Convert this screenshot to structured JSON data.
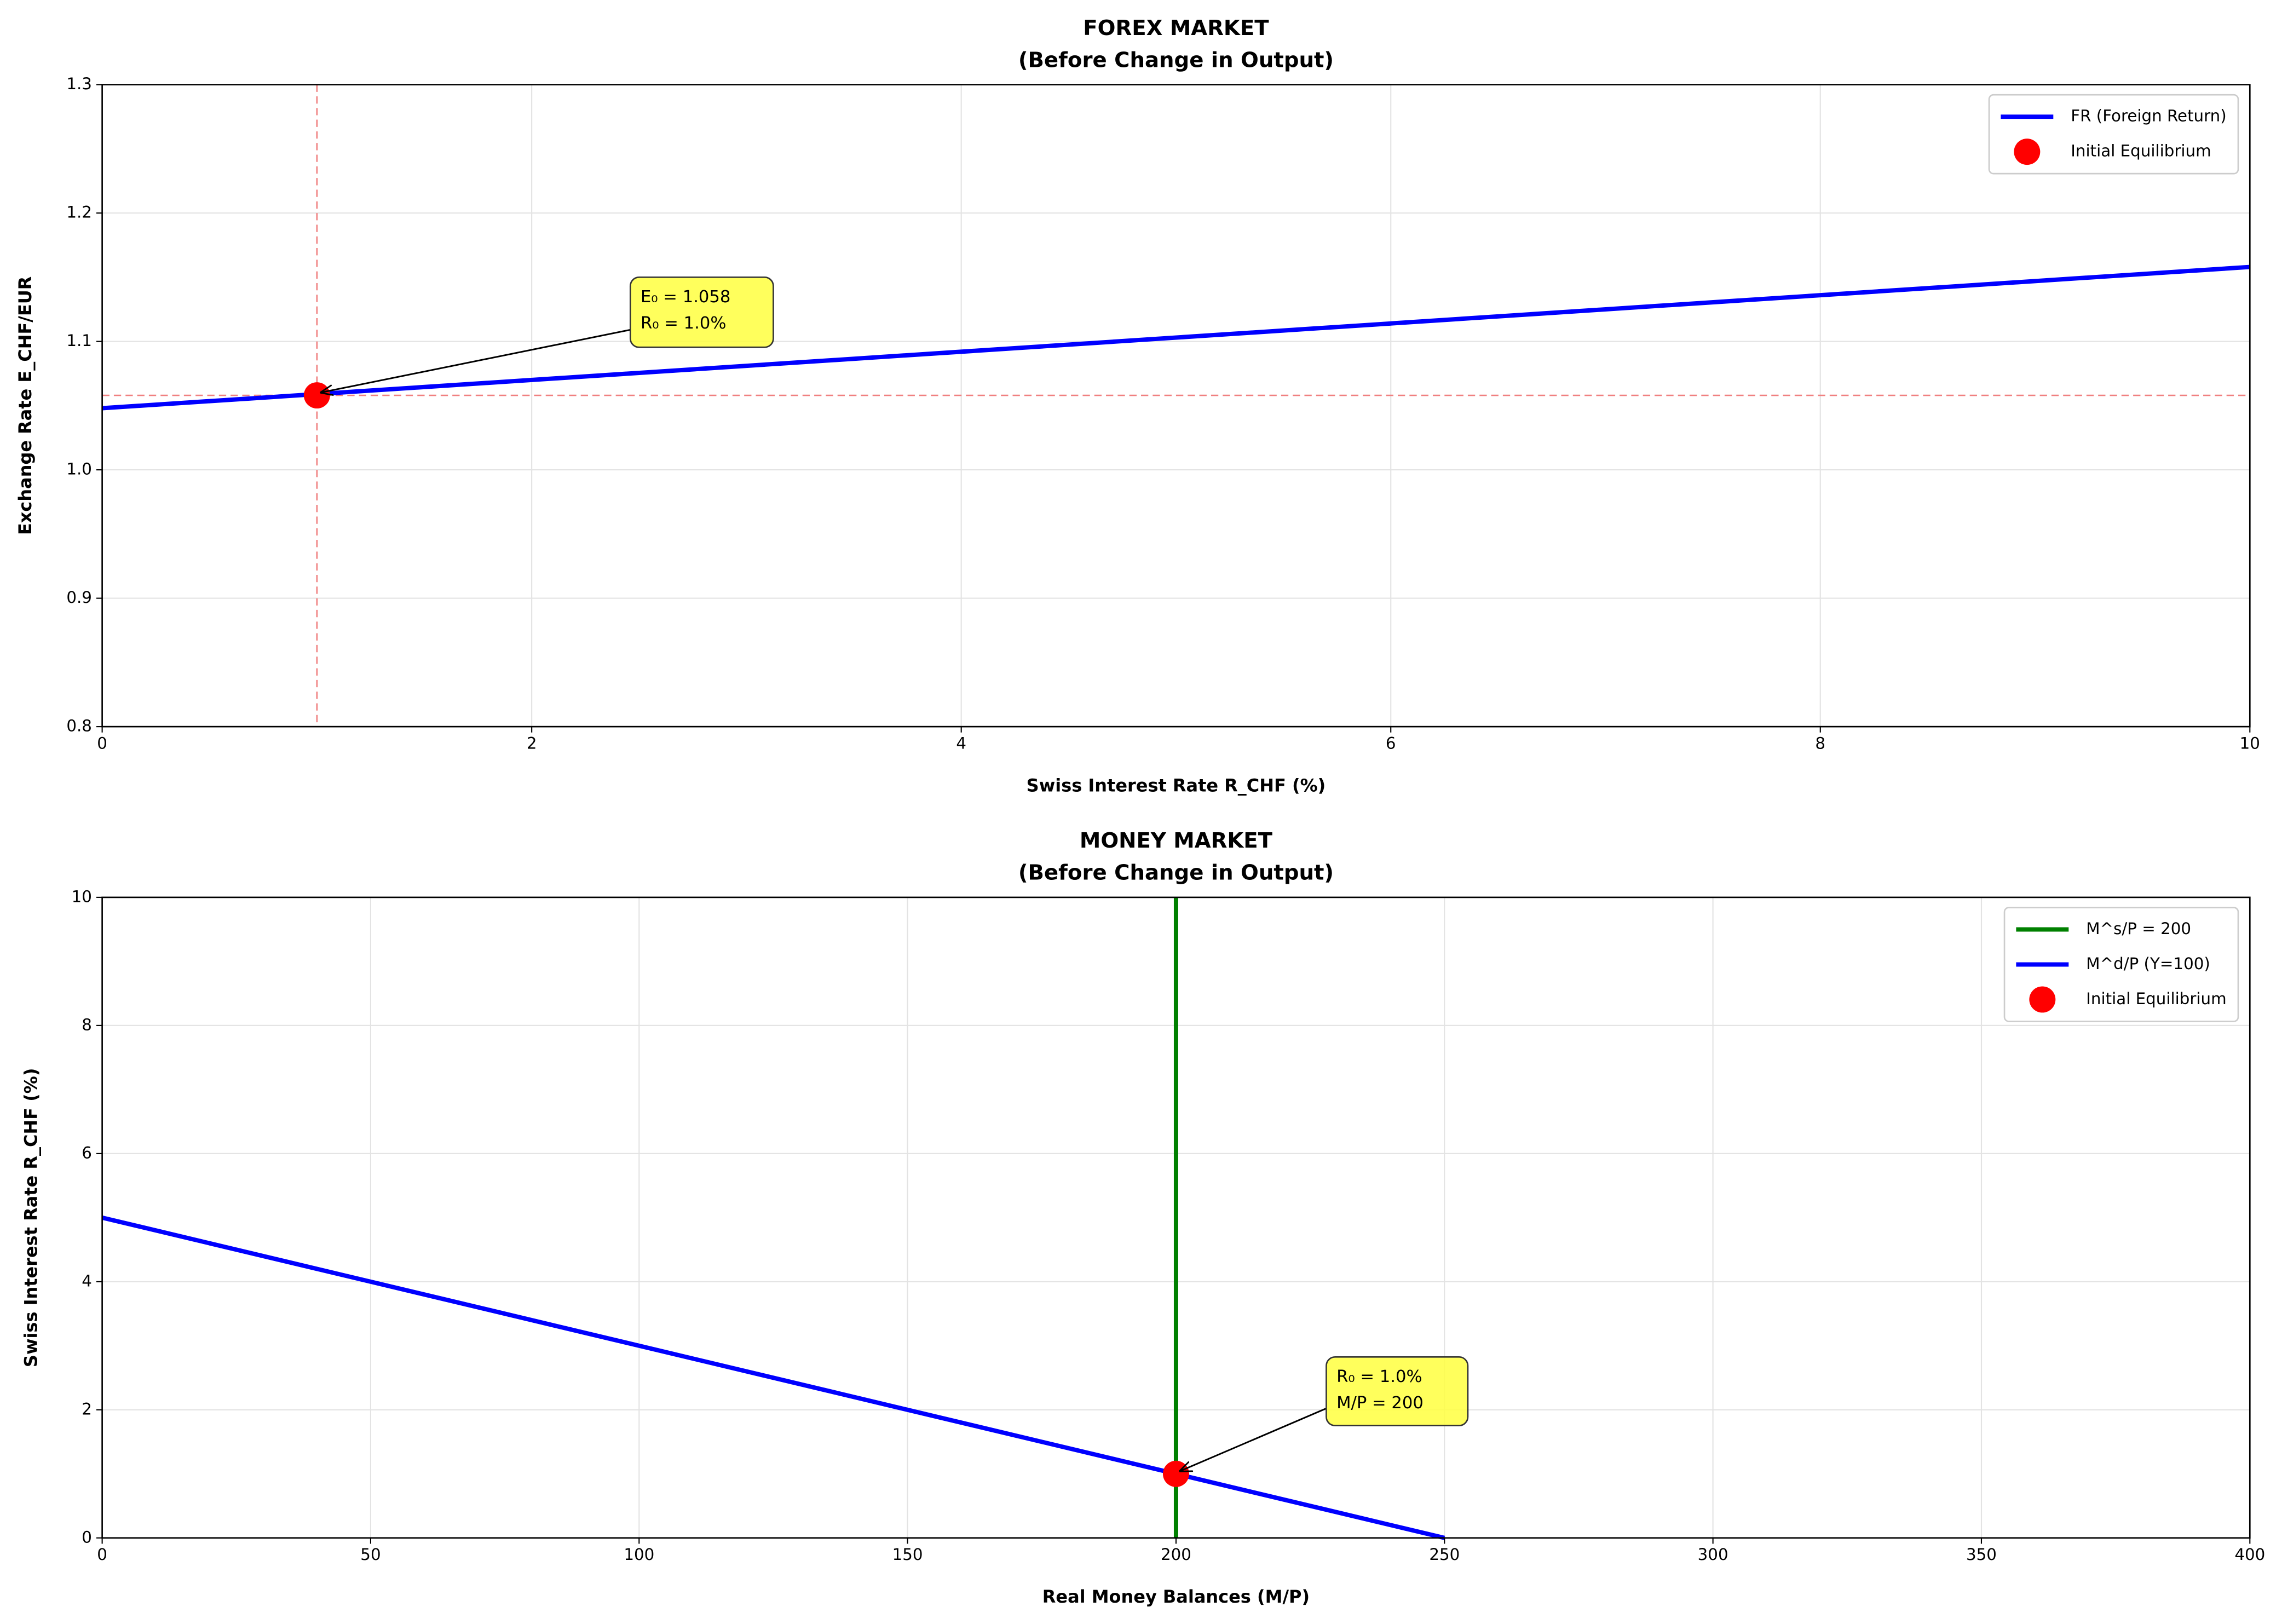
{
  "chart_data": [
    {
      "type": "line",
      "title": "FOREX MARKET",
      "subtitle": "(Before Change in Output)",
      "x_label": "Swiss Interest Rate R_CHF (%)",
      "y_label": "Exchange Rate E_CHF/EUR",
      "xlim": [
        0,
        10
      ],
      "xticks": [
        0,
        2,
        4,
        6,
        8,
        10
      ],
      "ylim": [
        0.8,
        1.3
      ],
      "yticks": [
        0.8,
        0.9,
        {
          "value": 1,
          "label": "1.0"
        },
        1.1,
        1.2,
        1.3
      ],
      "grid": true,
      "legend": "upper right",
      "series": [
        {
          "name": "FR (Foreign Return)",
          "color": "#0000ff",
          "style": "line",
          "x": [
            0,
            10
          ],
          "values": [
            1.048,
            1.158
          ]
        },
        {
          "name": "Initial Equilibrium",
          "color": "#ff0000",
          "style": "point",
          "x": [
            1
          ],
          "values": [
            1.058
          ]
        }
      ],
      "ref_lines": {
        "x": 1,
        "y": 1.058,
        "color": "#f08080"
      },
      "annotation": [
        "E₀ = 1.058",
        "R₀ = 1.0%"
      ]
    },
    {
      "type": "line",
      "title": "MONEY MARKET",
      "subtitle": "(Before Change in Output)",
      "x_label": "Real Money Balances (M/P)",
      "y_label": "Swiss Interest Rate R_CHF (%)",
      "xlim": [
        0,
        400
      ],
      "xticks": [
        0,
        50,
        100,
        150,
        200,
        250,
        300,
        350,
        400
      ],
      "ylim": [
        0,
        10
      ],
      "yticks": [
        0,
        2,
        4,
        6,
        8,
        10
      ],
      "grid": true,
      "legend": "upper right",
      "series": [
        {
          "name": "M^s/P = 200",
          "color": "#008000",
          "style": "line",
          "x": [
            200,
            200
          ],
          "values": [
            0,
            10
          ]
        },
        {
          "name": "M^d/P (Y=100)",
          "color": "#0000ff",
          "style": "line",
          "x": [
            0,
            250
          ],
          "values": [
            5,
            0
          ]
        },
        {
          "name": "Initial Equilibrium",
          "color": "#ff0000",
          "style": "point",
          "x": [
            200
          ],
          "values": [
            1
          ]
        }
      ],
      "annotation": [
        "R₀ = 1.0%",
        "M/P = 200"
      ]
    }
  ]
}
